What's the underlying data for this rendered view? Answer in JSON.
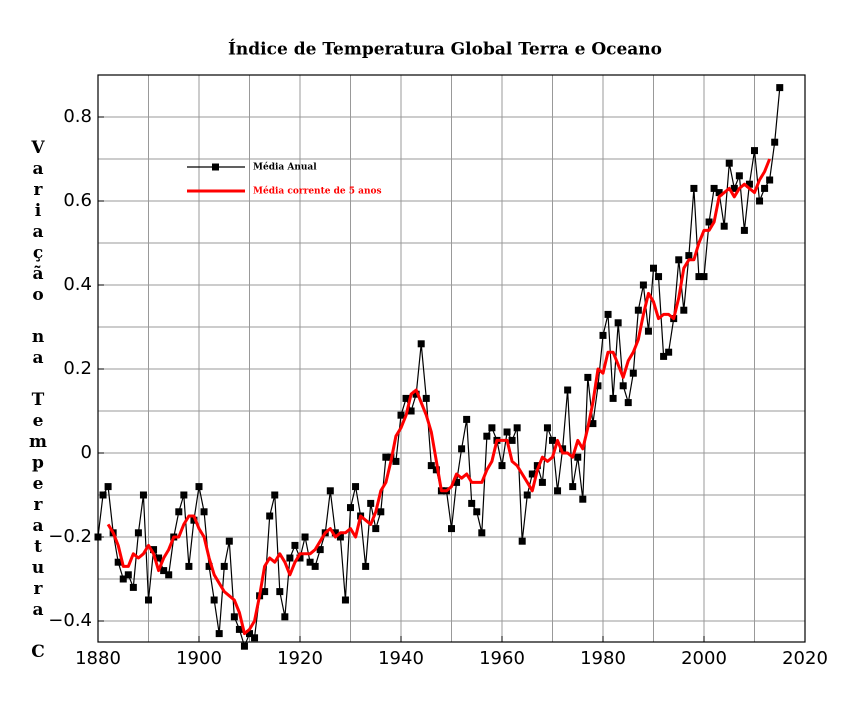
{
  "chart_data": {
    "type": "line",
    "title": "Índice de Temperatura Global Terra e Oceano",
    "y_label": "Variação na Temperatura C",
    "x": [
      1880,
      1881,
      1882,
      1883,
      1884,
      1885,
      1886,
      1887,
      1888,
      1889,
      1890,
      1891,
      1892,
      1893,
      1894,
      1895,
      1896,
      1897,
      1898,
      1899,
      1900,
      1901,
      1902,
      1903,
      1904,
      1905,
      1906,
      1907,
      1908,
      1909,
      1910,
      1911,
      1912,
      1913,
      1914,
      1915,
      1916,
      1917,
      1918,
      1919,
      1920,
      1921,
      1922,
      1923,
      1924,
      1925,
      1926,
      1927,
      1928,
      1929,
      1930,
      1931,
      1932,
      1933,
      1934,
      1935,
      1936,
      1937,
      1938,
      1939,
      1940,
      1941,
      1942,
      1943,
      1944,
      1945,
      1946,
      1947,
      1948,
      1949,
      1950,
      1951,
      1952,
      1953,
      1954,
      1955,
      1956,
      1957,
      1958,
      1959,
      1960,
      1961,
      1962,
      1963,
      1964,
      1965,
      1966,
      1967,
      1968,
      1969,
      1970,
      1971,
      1972,
      1973,
      1974,
      1975,
      1976,
      1977,
      1978,
      1979,
      1980,
      1981,
      1982,
      1983,
      1984,
      1985,
      1986,
      1987,
      1988,
      1989,
      1990,
      1991,
      1992,
      1993,
      1994,
      1995,
      1996,
      1997,
      1998,
      1999,
      2000,
      2001,
      2002,
      2003,
      2004,
      2005,
      2006,
      2007,
      2008,
      2009,
      2010,
      2011,
      2012,
      2013,
      2014,
      2015
    ],
    "series": [
      {
        "name": "Média Anual",
        "color": "#000000",
        "marker": "square",
        "values": [
          -0.2,
          -0.1,
          -0.08,
          -0.19,
          -0.26,
          -0.3,
          -0.29,
          -0.32,
          -0.19,
          -0.1,
          -0.35,
          -0.23,
          -0.25,
          -0.28,
          -0.29,
          -0.2,
          -0.14,
          -0.1,
          -0.27,
          -0.16,
          -0.08,
          -0.14,
          -0.27,
          -0.35,
          -0.43,
          -0.27,
          -0.21,
          -0.39,
          -0.42,
          -0.46,
          -0.43,
          -0.44,
          -0.34,
          -0.33,
          -0.15,
          -0.1,
          -0.33,
          -0.39,
          -0.25,
          -0.22,
          -0.25,
          -0.2,
          -0.26,
          -0.27,
          -0.23,
          -0.19,
          -0.09,
          -0.19,
          -0.2,
          -0.35,
          -0.13,
          -0.08,
          -0.15,
          -0.27,
          -0.12,
          -0.18,
          -0.14,
          -0.01,
          -0.01,
          -0.02,
          0.09,
          0.13,
          0.1,
          0.14,
          0.26,
          0.13,
          -0.03,
          -0.04,
          -0.09,
          -0.09,
          -0.18,
          -0.07,
          0.01,
          0.08,
          -0.12,
          -0.14,
          -0.19,
          0.04,
          0.06,
          0.03,
          -0.03,
          0.05,
          0.03,
          0.06,
          -0.21,
          -0.1,
          -0.05,
          -0.03,
          -0.07,
          0.06,
          0.03,
          -0.09,
          0.01,
          0.15,
          -0.08,
          -0.01,
          -0.11,
          0.18,
          0.07,
          0.16,
          0.28,
          0.33,
          0.13,
          0.31,
          0.16,
          0.12,
          0.19,
          0.34,
          0.4,
          0.29,
          0.44,
          0.42,
          0.23,
          0.24,
          0.32,
          0.46,
          0.34,
          0.47,
          0.63,
          0.42,
          0.42,
          0.55,
          0.63,
          0.62,
          0.54,
          0.69,
          0.63,
          0.66,
          0.53,
          0.64,
          0.72,
          0.6,
          0.63,
          0.65,
          0.74,
          0.87
        ]
      },
      {
        "name": "Média corrente de 5 anos",
        "color": "#ff0000",
        "marker": "none",
        "values": [
          null,
          null,
          -0.17,
          -0.19,
          -0.22,
          -0.27,
          -0.27,
          -0.24,
          -0.25,
          -0.24,
          -0.22,
          -0.24,
          -0.28,
          -0.25,
          -0.23,
          -0.2,
          -0.2,
          -0.17,
          -0.15,
          -0.15,
          -0.18,
          -0.2,
          -0.25,
          -0.29,
          -0.31,
          -0.33,
          -0.34,
          -0.35,
          -0.38,
          -0.43,
          -0.42,
          -0.4,
          -0.34,
          -0.27,
          -0.25,
          -0.26,
          -0.24,
          -0.26,
          -0.29,
          -0.26,
          -0.24,
          -0.24,
          -0.24,
          -0.23,
          -0.21,
          -0.19,
          -0.18,
          -0.2,
          -0.19,
          -0.19,
          -0.18,
          -0.2,
          -0.15,
          -0.16,
          -0.17,
          -0.14,
          -0.09,
          -0.07,
          -0.02,
          0.04,
          0.06,
          0.09,
          0.14,
          0.15,
          0.12,
          0.09,
          0.05,
          -0.02,
          -0.09,
          -0.09,
          -0.08,
          -0.05,
          -0.06,
          -0.05,
          -0.07,
          -0.07,
          -0.07,
          -0.04,
          -0.02,
          0.03,
          0.03,
          0.03,
          -0.02,
          -0.03,
          -0.05,
          -0.07,
          -0.09,
          -0.04,
          -0.01,
          -0.02,
          -0.01,
          0.03,
          0,
          0,
          -0.01,
          0.03,
          0.01,
          0.06,
          0.12,
          0.2,
          0.19,
          0.24,
          0.24,
          0.21,
          0.18,
          0.22,
          0.24,
          0.27,
          0.33,
          0.38,
          0.36,
          0.32,
          0.33,
          0.33,
          0.32,
          0.37,
          0.44,
          0.46,
          0.46,
          0.5,
          0.53,
          0.53,
          0.55,
          0.61,
          0.62,
          0.63,
          0.61,
          0.63,
          0.64,
          0.63,
          0.62,
          0.65,
          0.67,
          0.7,
          null,
          null
        ]
      }
    ],
    "xlim": [
      1880,
      2020
    ],
    "xticks": [
      1880,
      1900,
      1920,
      1940,
      1960,
      1980,
      2000,
      2020
    ],
    "ylim": [
      -0.45,
      0.9
    ],
    "yticks": [
      {
        "value": -0.4,
        "label": "−0.4"
      },
      {
        "value": -0.2,
        "label": "−0.2"
      },
      0,
      0.2,
      0.4,
      0.6,
      0.8
    ],
    "grid": true,
    "x_grid": [
      1880,
      1890,
      1900,
      1910,
      1920,
      1930,
      1940,
      1950,
      1960,
      1970,
      1980,
      1990,
      2000,
      2010,
      2020
    ],
    "y_grid": [
      -0.4,
      -0.3,
      -0.2,
      -0.1,
      0,
      0.1,
      0.2,
      0.3,
      0.4,
      0.5,
      0.6,
      0.7,
      0.8
    ],
    "legend": "upper left"
  }
}
